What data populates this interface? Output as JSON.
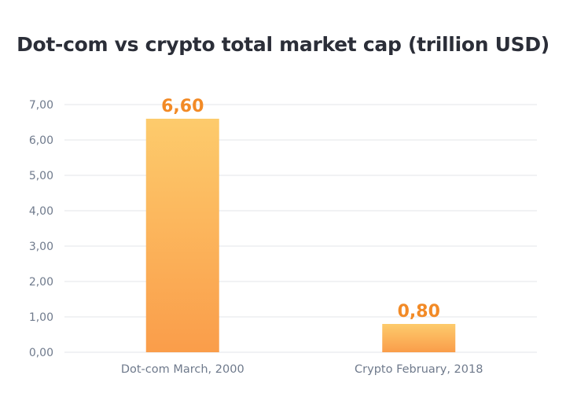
{
  "chart_data": {
    "type": "bar",
    "title": "Dot-com vs crypto total market cap (trillion USD)",
    "categories": [
      "Dot-com March, 2000",
      "Crypto February, 2018"
    ],
    "values": [
      6.6,
      0.8
    ],
    "value_labels": [
      "6,60",
      "0,80"
    ],
    "ylim": [
      0,
      7
    ],
    "y_ticks": [
      0,
      1,
      2,
      3,
      4,
      5,
      6,
      7
    ],
    "y_tick_labels": [
      "0,00",
      "1,00",
      "2,00",
      "3,00",
      "4,00",
      "5,00",
      "6,00",
      "7,00"
    ],
    "grid": true,
    "legend": "none",
    "colors": {
      "bar_top": "#fdcb6c",
      "bar_bottom": "#fa9d4a",
      "value_label": "#f28a26",
      "grid": "#e3e5ea",
      "axis_text": "#6f7a8c",
      "title": "#2b2e38"
    }
  }
}
